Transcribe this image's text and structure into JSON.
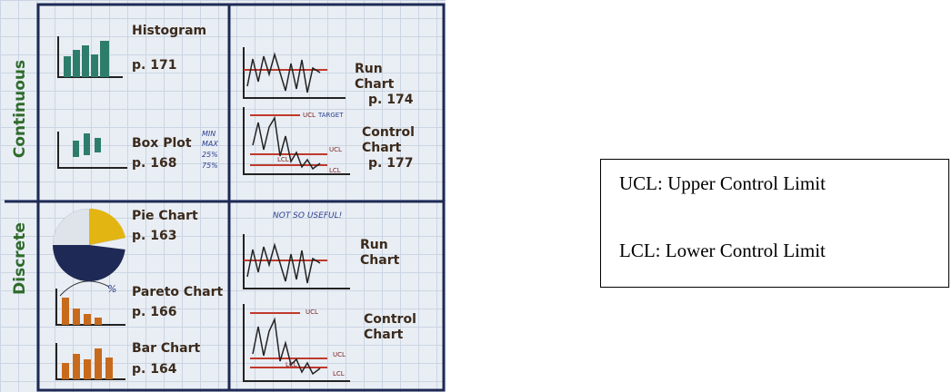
{
  "board": {
    "rows": [
      {
        "label": "Continuous",
        "left": [
          {
            "title": "Histogram",
            "page": "p. 171"
          },
          {
            "title": "Box Plot",
            "page": "p. 168",
            "notes": [
              "MIN",
              "MAX",
              "25%",
              "75%"
            ]
          }
        ],
        "right": [
          {
            "title": "Run Chart",
            "page": "p. 174"
          },
          {
            "title": "Control Chart",
            "page": "p. 177",
            "limits": [
              "UCL",
              "TARGET",
              "UCL",
              "LCL",
              "LCL"
            ]
          }
        ]
      },
      {
        "label": "Discrete",
        "note": "NOT SO USEFUL!",
        "left": [
          {
            "title": "Pie Chart",
            "page": "p. 163"
          },
          {
            "title": "Pareto Chart",
            "page": "p. 166",
            "notes": [
              "%"
            ]
          },
          {
            "title": "Bar Chart",
            "page": "p. 164"
          }
        ],
        "right": [
          {
            "title": "Run Chart"
          },
          {
            "title": "Control Chart",
            "limits": [
              "UCL",
              "UCL",
              "LCL",
              "LCL"
            ]
          }
        ]
      }
    ]
  },
  "legend": {
    "lines": [
      "UCL: Upper Control Limit",
      "LCL: Lower Control Limit"
    ]
  }
}
